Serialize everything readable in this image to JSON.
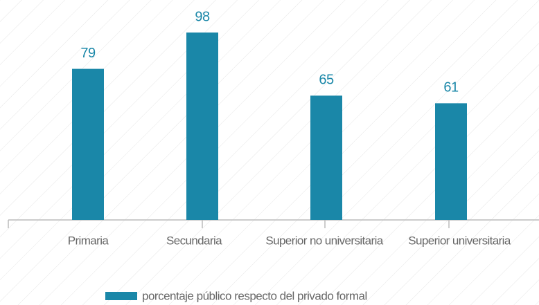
{
  "chart_data": {
    "type": "bar",
    "categories": [
      "Primaria",
      "Secundaria",
      "Superior no universitaria",
      "Superior universitaria"
    ],
    "series": [
      {
        "name": "porcentaje público respecto del privado formal",
        "color": "#1a87a8",
        "values": [
          79,
          98,
          65,
          61
        ]
      }
    ],
    "ylim": [
      0,
      100
    ]
  }
}
